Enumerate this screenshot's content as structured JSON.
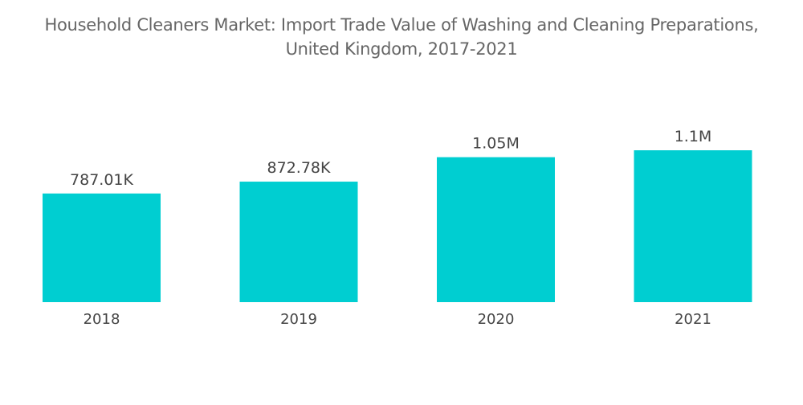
{
  "chart_data": {
    "type": "bar",
    "title_line1": "Household Cleaners Market: Import Trade Value of Washing and Cleaning Preparations,",
    "title_line2": "United Kingdom, 2017-2021",
    "categories": [
      "2018",
      "2019",
      "2020",
      "2021"
    ],
    "values": [
      787010,
      872780,
      1050000,
      1100000
    ],
    "data_labels": [
      "787.01K",
      "872.78K",
      "1.05M",
      "1.1M"
    ],
    "xlabel": "",
    "ylabel": "",
    "ylim": [
      0,
      1100000
    ],
    "grid": false,
    "legend": "none",
    "bar_color": "#00CED1"
  }
}
